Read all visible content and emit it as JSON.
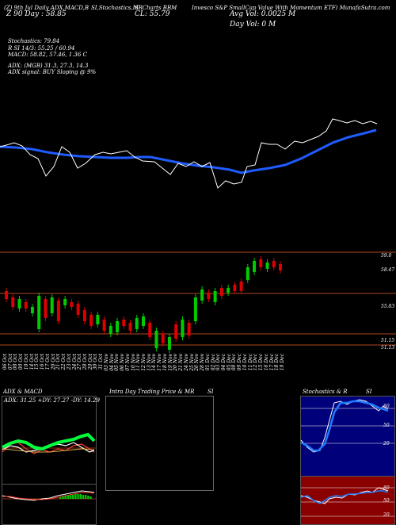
{
  "header": {
    "left": "(Z) 9th Jul Daily ADX,MACD,B",
    "mid1": "SI,Stochastics,MR",
    "mid2": "SI Charts BBM",
    "title": "Invesco S&P SmallCap Value With Momentum ETF) MunafaSutra.com",
    "price_line": "Z 90 Day : 58.85",
    "close_line": "CL: 55.79",
    "avg_vol_line": "Avg Vol: 0.0025 M",
    "day_vol_line": "Day Vol: 0 M"
  },
  "indicators": {
    "stochastics": "Stochastics: 79.84",
    "rsi": "R        SI 14/3: 55.25 / 60.94",
    "macd": "MACD: 58.82, 57.46, 1.36   C",
    "adx": "ADX:                    (MGB) 31.3,  27.3,  14.3",
    "adx_signal": "ADX  signal:                    BUY Sloping @ 9%"
  },
  "price_levels": {
    "l1": "59.0",
    "l2": "58.47",
    "l3": "55.83",
    "l4": "51.15",
    "l5": "51.13"
  },
  "dates": [
    "06 Oct",
    "07 Oct",
    "08 Oct",
    "09 Oct",
    "10 Oct",
    "14 Oct",
    "15 Oct",
    "16 Oct",
    "17 Oct",
    "20 Oct",
    "21 Oct",
    "22 Oct",
    "23 Oct",
    "24 Oct",
    "27 Oct",
    "28 Oct",
    "29 Oct",
    "30 Oct",
    "31 Oct",
    "03 Nov",
    "04 Nov",
    "05 Nov",
    "06 Nov",
    "07 Nov",
    "10 Nov",
    "11 Nov",
    "12 Nov",
    "13 Nov",
    "14 Nov",
    "17 Nov",
    "18 Nov",
    "19 Nov",
    "20 Nov",
    "21 Nov",
    "24 Nov",
    "25 Nov",
    "26 Nov",
    "28 Nov",
    "01 Dec",
    "02 Dec",
    "03 Dec",
    "04 Dec",
    "05 Dec",
    "08 Dec",
    "09 Dec",
    "10 Dec",
    "11 Dec",
    "12 Dec",
    "15 Dec",
    "16 Dec",
    "17 Dec",
    "18 Dec",
    "19 Dec"
  ],
  "panels": {
    "adx_title": "ADX  & MACD",
    "adx_values": "ADX: 31.25  +DY: 27.27  -DY: 14.29",
    "intra_title": "Intra  Day Trading Price  & MR",
    "intra_si": "SI",
    "stoch_title": "Stochastics & R",
    "stoch_si": "SI",
    "stoch_ticks": [
      "80",
      "50",
      "20"
    ],
    "stoch_val": "80",
    "rsi_ticks": [
      "80",
      "50",
      "20"
    ],
    "rsi_val": "55"
  },
  "colors": {
    "bullish": "#00cc00",
    "bearish": "#dd0000",
    "ma": "#1f5bff",
    "price_line": "#ffffff",
    "level_line": "#b0471f",
    "stoch_bg": "#00007a",
    "rsi_bg": "#8a0000"
  }
}
